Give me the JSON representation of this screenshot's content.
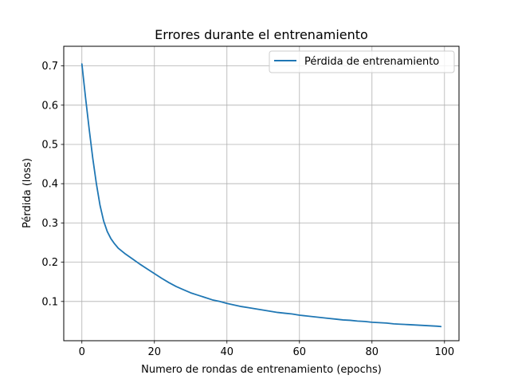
{
  "chart_data": {
    "type": "line",
    "title": "Errores durante el entrenamiento",
    "xlabel": "Numero de rondas de entrenamiento (epochs)",
    "ylabel": "Pérdida (loss)",
    "xlim": [
      -5,
      104
    ],
    "ylim": [
      0,
      0.75
    ],
    "xticks": [
      0,
      20,
      40,
      60,
      80,
      100
    ],
    "yticks": [
      0.1,
      0.2,
      0.3,
      0.4,
      0.5,
      0.6,
      0.7
    ],
    "grid": true,
    "legend_position": "top-right",
    "series": [
      {
        "name": "Pérdida de entrenamiento",
        "color": "#1f77b4",
        "x": [
          0,
          1,
          2,
          3,
          4,
          5,
          6,
          7,
          8,
          9,
          10,
          12,
          14,
          16,
          18,
          20,
          22,
          24,
          26,
          28,
          30,
          32,
          34,
          36,
          38,
          40,
          42,
          44,
          46,
          48,
          50,
          52,
          54,
          56,
          58,
          60,
          62,
          64,
          66,
          68,
          70,
          72,
          74,
          76,
          78,
          80,
          82,
          84,
          86,
          88,
          90,
          92,
          94,
          96,
          98,
          99
        ],
        "y": [
          0.705,
          0.62,
          0.54,
          0.465,
          0.4,
          0.345,
          0.305,
          0.278,
          0.26,
          0.247,
          0.236,
          0.221,
          0.208,
          0.195,
          0.183,
          0.171,
          0.159,
          0.148,
          0.138,
          0.13,
          0.122,
          0.116,
          0.11,
          0.104,
          0.1,
          0.095,
          0.091,
          0.087,
          0.084,
          0.081,
          0.078,
          0.075,
          0.072,
          0.07,
          0.068,
          0.065,
          0.063,
          0.061,
          0.059,
          0.057,
          0.055,
          0.053,
          0.052,
          0.05,
          0.049,
          0.047,
          0.046,
          0.045,
          0.043,
          0.042,
          0.041,
          0.04,
          0.039,
          0.038,
          0.037,
          0.036
        ]
      }
    ]
  }
}
